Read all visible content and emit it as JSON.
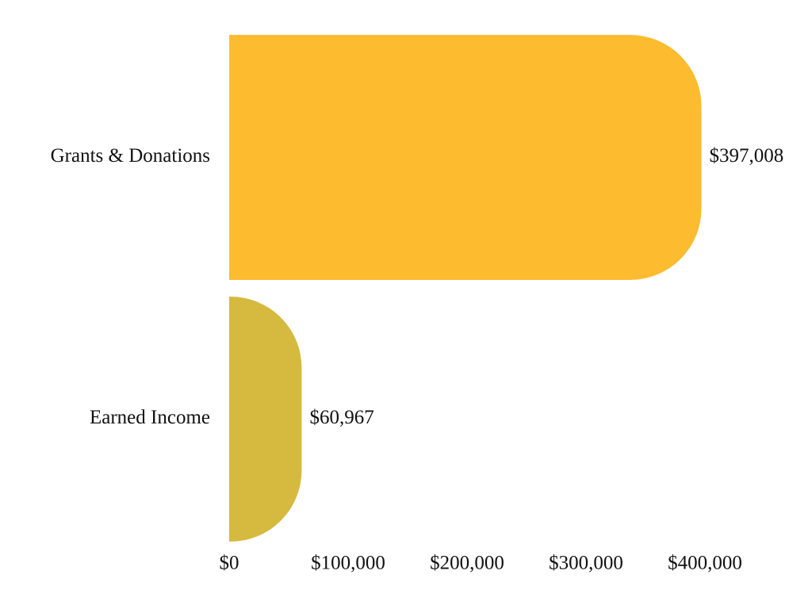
{
  "chart_data": {
    "type": "bar",
    "orientation": "horizontal",
    "categories": [
      "Grants & Donations",
      "Earned Income"
    ],
    "values": [
      397008,
      60967
    ],
    "value_labels": [
      "$397,008",
      "$60,967"
    ],
    "colors": [
      "#fdbb30",
      "#d6ba3f"
    ],
    "xlim": [
      0,
      400000
    ],
    "xticks": [
      {
        "value": 0,
        "label": "$0"
      },
      {
        "value": 100000,
        "label": "$100,000"
      },
      {
        "value": 200000,
        "label": "$200,000"
      },
      {
        "value": 300000,
        "label": "$300,000"
      },
      {
        "value": 400000,
        "label": "$400,000"
      }
    ],
    "grid": false
  }
}
